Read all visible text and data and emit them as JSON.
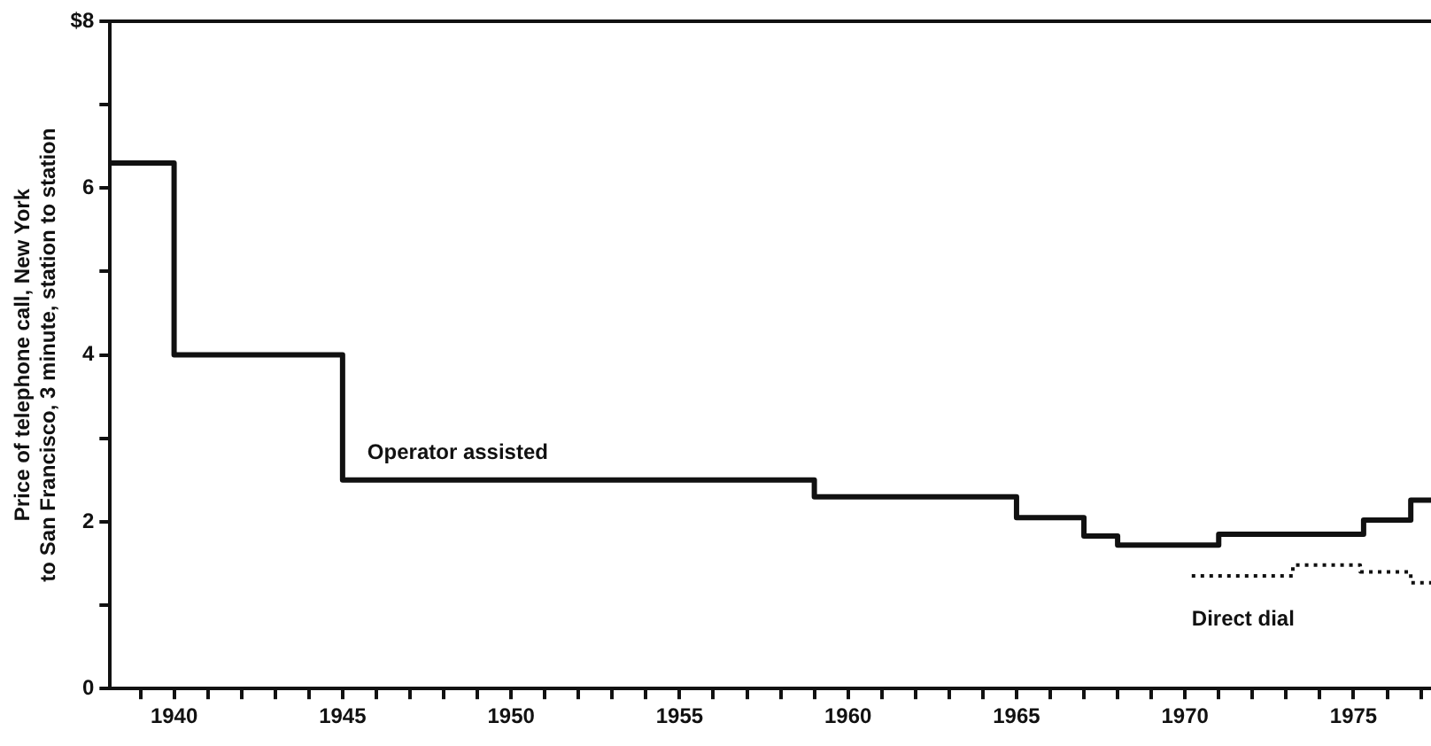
{
  "chart_data": {
    "type": "step",
    "ylabel": "Price of telephone call, New York\nto San Francisco, 3 minute, station to station",
    "xlim": [
      1938.1,
      1977.3
    ],
    "ylim": [
      0,
      8
    ],
    "yticks": [
      0,
      {
        "value": 1,
        "label": null
      },
      2,
      {
        "value": 3,
        "label": null
      },
      4,
      {
        "value": 5,
        "label": null
      },
      6,
      {
        "value": 7,
        "label": null
      },
      {
        "value": 8,
        "label": "$8"
      }
    ],
    "xticks": [
      {
        "value": 1939,
        "label": null
      },
      1940,
      {
        "value": 1941,
        "label": null
      },
      {
        "value": 1942,
        "label": null
      },
      {
        "value": 1943,
        "label": null
      },
      {
        "value": 1944,
        "label": null
      },
      1945,
      {
        "value": 1946,
        "label": null
      },
      {
        "value": 1947,
        "label": null
      },
      {
        "value": 1948,
        "label": null
      },
      {
        "value": 1949,
        "label": null
      },
      1950,
      {
        "value": 1951,
        "label": null
      },
      {
        "value": 1952,
        "label": null
      },
      {
        "value": 1953,
        "label": null
      },
      {
        "value": 1954,
        "label": null
      },
      1955,
      {
        "value": 1956,
        "label": null
      },
      {
        "value": 1957,
        "label": null
      },
      {
        "value": 1958,
        "label": null
      },
      {
        "value": 1959,
        "label": null
      },
      1960,
      {
        "value": 1961,
        "label": null
      },
      {
        "value": 1962,
        "label": null
      },
      {
        "value": 1963,
        "label": null
      },
      {
        "value": 1964,
        "label": null
      },
      1965,
      {
        "value": 1966,
        "label": null
      },
      {
        "value": 1967,
        "label": null
      },
      {
        "value": 1968,
        "label": null
      },
      {
        "value": 1969,
        "label": null
      },
      1970,
      {
        "value": 1971,
        "label": null
      },
      {
        "value": 1972,
        "label": null
      },
      {
        "value": 1973,
        "label": null
      },
      {
        "value": 1974,
        "label": null
      },
      1975,
      {
        "value": 1976,
        "label": null
      },
      {
        "value": 1977,
        "label": null
      }
    ],
    "grid": false,
    "legend": false,
    "marker": "none",
    "series": [
      {
        "name": "Operator assisted",
        "color": "#111111",
        "line_style": "solid",
        "x": [
          1938.1,
          1940,
          1945,
          1959,
          1965,
          1967,
          1968,
          1971,
          1975.3,
          1976.7,
          1977.3
        ],
        "values": [
          6.3,
          4.0,
          2.5,
          2.3,
          2.05,
          1.83,
          1.72,
          1.85,
          2.02,
          2.26,
          2.26
        ]
      },
      {
        "name": "Direct dial",
        "color": "#111111",
        "line_style": "dotted",
        "x": [
          1970.2,
          1973.2,
          1975.2,
          1976.7,
          1977.3
        ],
        "values": [
          1.35,
          1.48,
          1.4,
          1.27,
          1.27
        ]
      }
    ]
  }
}
